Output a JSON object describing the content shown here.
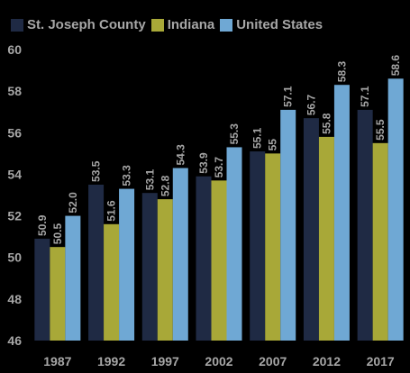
{
  "chart_data": {
    "type": "bar",
    "title": "",
    "xlabel": "",
    "ylabel": "",
    "categories": [
      "1987",
      "1992",
      "1997",
      "2002",
      "2007",
      "2012",
      "2017"
    ],
    "series": [
      {
        "name": "St. Joseph County",
        "color": "#1f2a44",
        "values": [
          50.9,
          53.5,
          53.1,
          53.9,
          55.1,
          56.7,
          57.1
        ],
        "labels": [
          "50.9",
          "53.5",
          "53.1",
          "53.9",
          "55.1",
          "56.7",
          "57.1"
        ]
      },
      {
        "name": "Indiana",
        "color": "#a8a838",
        "values": [
          50.5,
          51.6,
          52.8,
          53.7,
          55.0,
          55.8,
          55.5
        ],
        "labels": [
          "50.5",
          "51.6",
          "52.8",
          "53.7",
          "55",
          "55.8",
          "55.5"
        ]
      },
      {
        "name": "United States",
        "color": "#6fa8d4",
        "values": [
          52.0,
          53.3,
          54.3,
          55.3,
          57.1,
          58.3,
          58.6
        ],
        "labels": [
          "52.0",
          "53.3",
          "54.3",
          "55.3",
          "57.1",
          "58.3",
          "58.6"
        ]
      }
    ],
    "ylim": [
      46,
      60
    ],
    "yticks": [
      "46",
      "48",
      "50",
      "52",
      "54",
      "56",
      "58",
      "60"
    ],
    "grid": false,
    "legend_position": "top"
  }
}
